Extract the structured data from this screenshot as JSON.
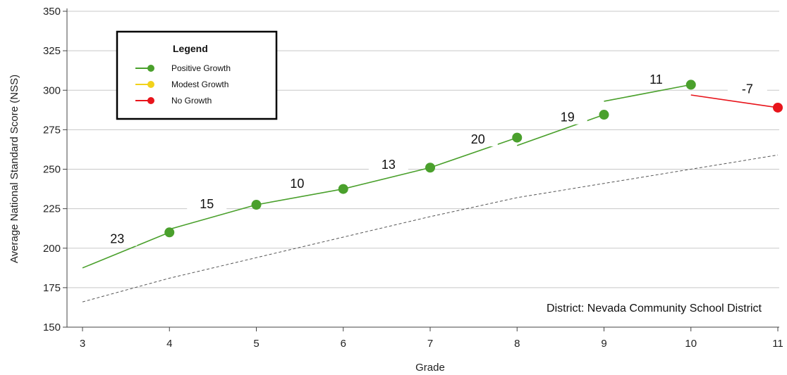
{
  "chart_data": {
    "type": "line",
    "xlabel": "Grade",
    "ylabel": "Average National Standard Score (NSS)",
    "xlim": [
      3,
      11
    ],
    "ylim": [
      150,
      350
    ],
    "x_ticks": [
      3,
      4,
      5,
      6,
      7,
      8,
      9,
      10,
      11
    ],
    "y_ticks": [
      150,
      175,
      200,
      225,
      250,
      275,
      300,
      325,
      350
    ],
    "grid": "horizontal",
    "annotation": "District: Nevada Community School District",
    "legend": {
      "title": "Legend",
      "placement": "top-left",
      "items": [
        {
          "label": "Positive Growth",
          "color": "#4aa02c"
        },
        {
          "label": "Modest Growth",
          "color": "#f2d21b"
        },
        {
          "label": "No Growth",
          "color": "#e8141b"
        }
      ]
    },
    "growth_segments": [
      {
        "from": [
          3,
          187.5
        ],
        "to": [
          4,
          210
        ],
        "growth": "23",
        "status": "Positive Growth",
        "start_marker": false
      },
      {
        "from": [
          4,
          212
        ],
        "to": [
          5,
          227.5
        ],
        "growth": "15",
        "status": "Positive Growth",
        "start_marker": false
      },
      {
        "from": [
          5,
          227.5
        ],
        "to": [
          6,
          237.5
        ],
        "growth": "10",
        "status": "Positive Growth",
        "start_marker": false
      },
      {
        "from": [
          6,
          237.5
        ],
        "to": [
          7,
          251
        ],
        "growth": "13",
        "status": "Positive Growth",
        "start_marker": false
      },
      {
        "from": [
          8,
          265
        ],
        "to": [
          9,
          284.5
        ],
        "growth": "19",
        "status": "Positive Growth",
        "start_marker": false
      },
      {
        "from": [
          9,
          293
        ],
        "to": [
          10,
          303.5
        ],
        "growth": "11",
        "status": "Positive Growth",
        "start_marker": false
      },
      {
        "from": [
          10,
          297
        ],
        "to": [
          11,
          289
        ],
        "growth": "-7",
        "status": "No Growth",
        "start_marker": false
      }
    ],
    "segments_no_label": [
      {
        "from": [
          7,
          251
        ],
        "to": [
          8,
          270
        ],
        "growth": "20",
        "status": "Positive Growth"
      }
    ],
    "points": [
      {
        "x": 4,
        "y": 210,
        "status": "Positive Growth"
      },
      {
        "x": 5,
        "y": 227.5,
        "status": "Positive Growth"
      },
      {
        "x": 6,
        "y": 237.5,
        "status": "Positive Growth"
      },
      {
        "x": 7,
        "y": 251,
        "status": "Positive Growth"
      },
      {
        "x": 8,
        "y": 270,
        "status": "Positive Growth"
      },
      {
        "x": 9,
        "y": 284.5,
        "status": "Positive Growth"
      },
      {
        "x": 10,
        "y": 303.5,
        "status": "Positive Growth"
      },
      {
        "x": 11,
        "y": 289,
        "status": "No Growth"
      }
    ],
    "growth_labels": [
      {
        "text": "23",
        "x": 3.4,
        "y": 205
      },
      {
        "text": "15",
        "x": 4.43,
        "y": 227
      },
      {
        "text": "10",
        "x": 5.47,
        "y": 240
      },
      {
        "text": "13",
        "x": 6.52,
        "y": 252
      },
      {
        "text": "20",
        "x": 7.55,
        "y": 268
      },
      {
        "text": "19",
        "x": 8.58,
        "y": 282
      },
      {
        "text": "11",
        "x": 9.6,
        "y": 306
      },
      {
        "text": "-7",
        "x": 10.65,
        "y": 300
      }
    ],
    "norm_line": [
      {
        "x": 3,
        "y": 166
      },
      {
        "x": 4,
        "y": 181
      },
      {
        "x": 5,
        "y": 194
      },
      {
        "x": 6,
        "y": 207
      },
      {
        "x": 7,
        "y": 220
      },
      {
        "x": 8,
        "y": 232
      },
      {
        "x": 9,
        "y": 241
      },
      {
        "x": 10,
        "y": 250
      },
      {
        "x": 11,
        "y": 259
      }
    ]
  }
}
